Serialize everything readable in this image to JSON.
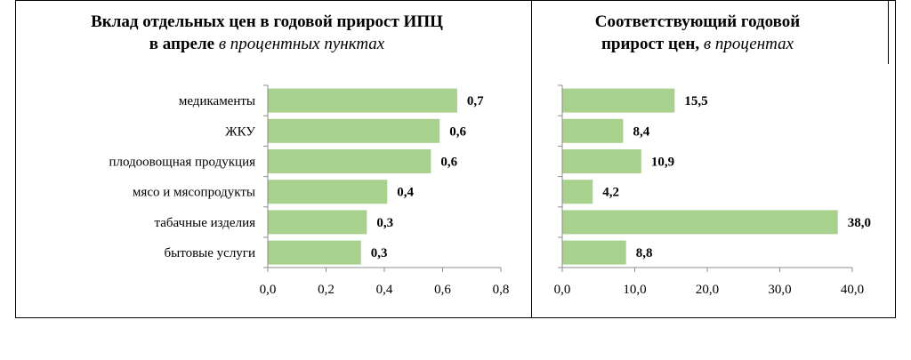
{
  "chart_data": [
    {
      "type": "bar",
      "orientation": "horizontal",
      "title_bold_1": "Вклад отдельных цен в годовой прирост ИПЦ",
      "title_bold_2": "в апреле",
      "title_italic_2": "в процентных пунктах",
      "categories": [
        "медикаменты",
        "ЖКУ",
        "плодоовощная продукция",
        "мясо и мясопродукты",
        "табачные изделия",
        "бытовые услуги"
      ],
      "values": [
        0.7,
        0.6,
        0.6,
        0.4,
        0.3,
        0.3
      ],
      "bar_values": [
        0.65,
        0.59,
        0.56,
        0.41,
        0.34,
        0.32
      ],
      "value_labels": [
        "0,7",
        "0,6",
        "0,6",
        "0,4",
        "0,3",
        "0,3"
      ],
      "xlim": [
        0,
        0.8
      ],
      "xticks": [
        "0,0",
        "0,2",
        "0,4",
        "0,6",
        "0,8"
      ],
      "bar_color": "#a9d18e",
      "grid": false
    },
    {
      "type": "bar",
      "orientation": "horizontal",
      "title_bold_1": "Соответствующий годовой",
      "title_bold_2": "прирост цен,",
      "title_italic_2": "в процентах",
      "categories": [
        "медикаменты",
        "ЖКУ",
        "плодоовощная продукция",
        "мясо и мясопродукты",
        "табачные изделия",
        "бытовые услуги"
      ],
      "values": [
        15.5,
        8.4,
        10.9,
        4.2,
        38.0,
        8.8
      ],
      "value_labels": [
        "15,5",
        "8,4",
        "10,9",
        "4,2",
        "38,0",
        "8,8"
      ],
      "xlim": [
        0,
        40
      ],
      "xticks": [
        "0,0",
        "10,0",
        "20,0",
        "30,0",
        "40,0"
      ],
      "bar_color": "#a9d18e",
      "grid": false
    }
  ]
}
